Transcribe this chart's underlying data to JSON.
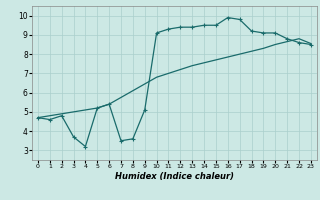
{
  "xlabel": "Humidex (Indice chaleur)",
  "ylabel": "",
  "xlim": [
    -0.5,
    23.5
  ],
  "ylim": [
    2.5,
    10.5
  ],
  "xticks": [
    0,
    1,
    2,
    3,
    4,
    5,
    6,
    7,
    8,
    9,
    10,
    11,
    12,
    13,
    14,
    15,
    16,
    17,
    18,
    19,
    20,
    21,
    22,
    23
  ],
  "yticks": [
    3,
    4,
    5,
    6,
    7,
    8,
    9,
    10
  ],
  "bg_color": "#cce8e4",
  "line_color": "#1a6b6b",
  "grid_color": "#aacfcc",
  "line1_x": [
    0,
    1,
    2,
    3,
    4,
    5,
    6,
    7,
    8,
    9,
    10,
    11,
    12,
    13,
    14,
    15,
    16,
    17,
    18,
    19,
    20,
    21,
    22,
    23
  ],
  "line1_y": [
    4.7,
    4.6,
    4.8,
    3.7,
    3.2,
    5.2,
    5.4,
    3.5,
    3.6,
    5.1,
    9.1,
    9.3,
    9.4,
    9.4,
    9.5,
    9.5,
    9.9,
    9.8,
    9.2,
    9.1,
    9.1,
    8.8,
    8.6,
    8.5
  ],
  "line2_x": [
    0,
    5,
    6,
    10,
    11,
    12,
    13,
    14,
    15,
    16,
    17,
    18,
    19,
    20,
    21,
    22,
    23
  ],
  "line2_y": [
    4.7,
    5.2,
    5.4,
    6.8,
    7.0,
    7.2,
    7.4,
    7.55,
    7.7,
    7.85,
    8.0,
    8.15,
    8.3,
    8.5,
    8.65,
    8.8,
    8.55
  ]
}
